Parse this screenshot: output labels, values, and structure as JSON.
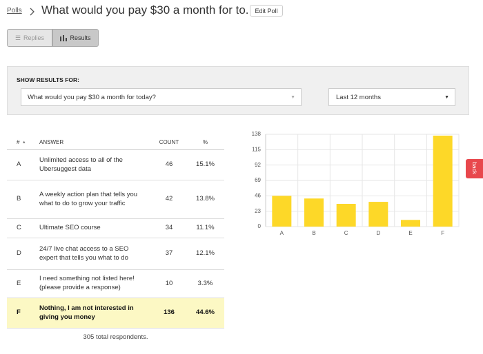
{
  "header": {
    "breadcrumb": "Polls",
    "title": "What would you pay $30 a month for to...",
    "edit_button": "Edit Poll"
  },
  "tabs": [
    "Replies",
    "Results"
  ],
  "filter": {
    "label": "SHOW RESULTS FOR:",
    "question": "What would you pay $30 a month for today?",
    "period": "Last 12 months"
  },
  "table": {
    "columns": [
      "#",
      "ANSWER",
      "COUNT",
      "%"
    ],
    "rows": [
      [
        "A",
        "Unlimited access to all of the Ubersuggest data",
        "46",
        "15.1%"
      ],
      [
        "B",
        "A weekly action plan that tells you what to do to grow your traffic",
        "42",
        "13.8%"
      ],
      [
        "C",
        "Ultimate SEO course",
        "34",
        "11.1%"
      ],
      [
        "D",
        "24/7 live chat access to a SEO expert that tells you what to do",
        "37",
        "12.1%"
      ],
      [
        "E",
        "I need something not listed here! (please provide a response)",
        "10",
        "3.3%"
      ],
      [
        "F",
        "Nothing, I am not interested in giving you money",
        "136",
        "44.6%"
      ]
    ],
    "footer": "305 total respondents."
  },
  "side_tab": "back",
  "chart_data": {
    "type": "bar",
    "categories": [
      "A",
      "B",
      "C",
      "D",
      "E",
      "F"
    ],
    "values": [
      46,
      42,
      34,
      37,
      10,
      136
    ],
    "color": "#fdd828",
    "ylim": [
      0,
      138
    ],
    "yticks": [
      0,
      23,
      46,
      69,
      92,
      115,
      138
    ],
    "grid": true
  }
}
